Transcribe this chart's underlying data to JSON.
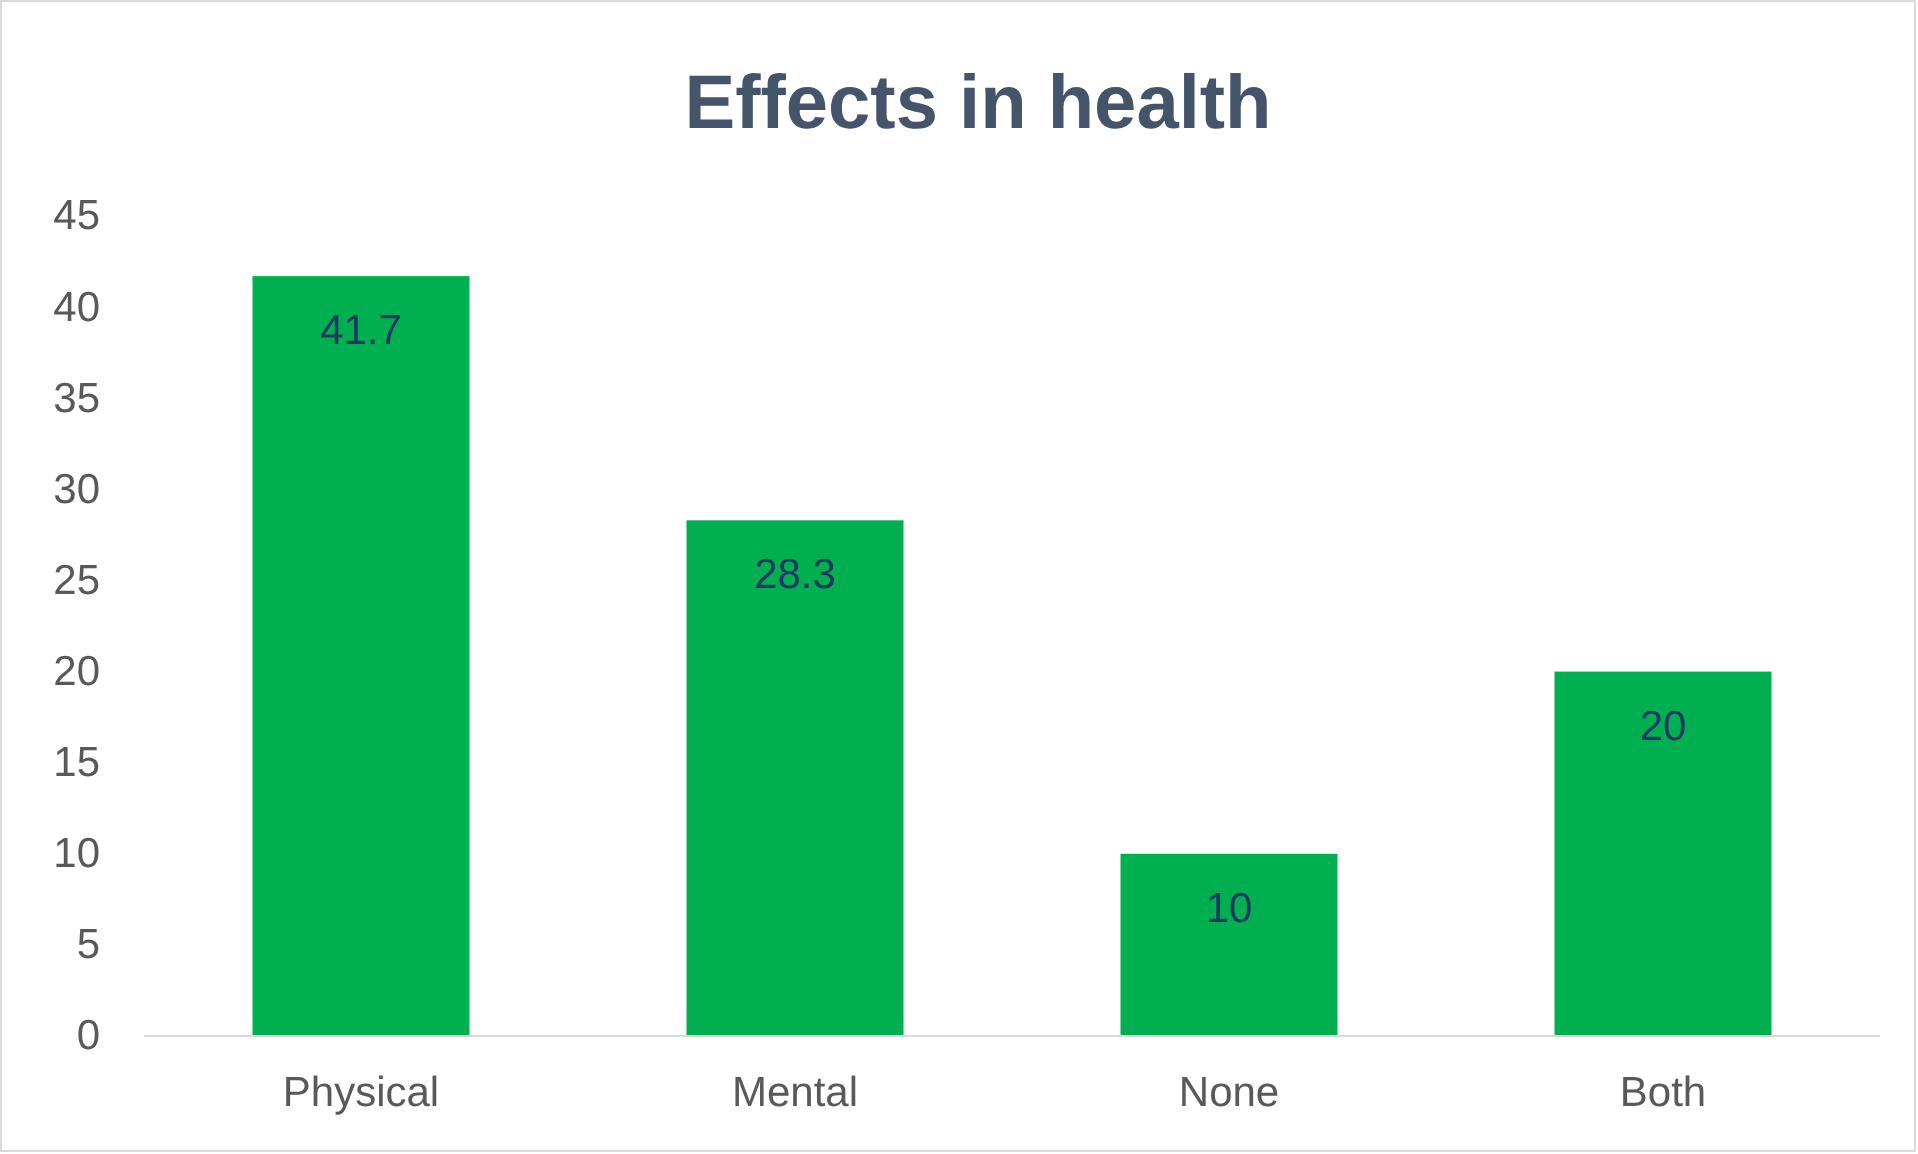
{
  "chart_data": {
    "type": "bar",
    "title": "Effects in health",
    "categories": [
      "Physical",
      "Mental",
      "None",
      "Both"
    ],
    "values": [
      41.7,
      28.3,
      10,
      20
    ],
    "color": "#00b050",
    "ylim": [
      0,
      45
    ],
    "yticks": [
      0,
      5,
      10,
      15,
      20,
      25,
      30,
      35,
      40,
      45
    ],
    "data_labels": true
  }
}
